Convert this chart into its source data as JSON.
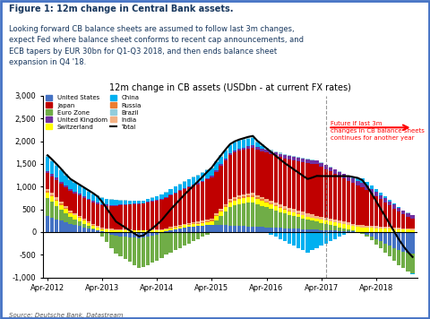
{
  "title": "12m change in CB assets (USDbn - at current FX rates)",
  "figure_title": "Figure 1: 12m change in Central Bank assets.",
  "figure_subtitle": "Looking forward CB balance sheets are assumed to follow last 3m changes,\nexpect Fed where balance sheet conforms to recent cap announcements, and\nECB tapers by EUR 30bn for Q1-Q3 2018, and then ends balance sheet\nexpansion in Q4 '18.",
  "source": "Source: Deutsche Bank, Datastream",
  "annotation_text": "Future if last 3m\nchanges in CB balance sheets\ncontinues for another year",
  "ylim": [
    -1000,
    3000
  ],
  "yticks": [
    -1000,
    -500,
    0,
    500,
    1000,
    1500,
    2000,
    2500,
    3000
  ],
  "colors": {
    "United States": "#4472C4",
    "Euro Zone": "#70AD47",
    "Switzerland": "#FFFF00",
    "Russia": "#ED7D31",
    "India": "#F4B183",
    "Japan": "#C00000",
    "United Kingdom": "#7030A0",
    "China": "#00B0F0",
    "Brazil": "#92CDDC",
    "Total": "#000000"
  },
  "legend_order": [
    "United States",
    "Japan",
    "Euro Zone",
    "United Kingdom",
    "Switzerland",
    "China",
    "Russia",
    "Brazil",
    "India",
    "Total"
  ],
  "background_color": "#FFFFFF",
  "border_color": "#4472C4",
  "header_bg": "#DAEEF3",
  "future_divider_index": 61,
  "xtick_positions": [
    0,
    12,
    24,
    36,
    48,
    60,
    72
  ],
  "xtick_labels": [
    "Apr-2012",
    "Apr-2013",
    "Apr-2014",
    "Apr-2015",
    "Apr-2016",
    "Apr-2017",
    "Apr-2018"
  ],
  "series": {
    "United States": [
      350,
      320,
      280,
      250,
      210,
      180,
      160,
      130,
      100,
      80,
      60,
      40,
      10,
      -20,
      -50,
      -80,
      -90,
      -100,
      -110,
      -120,
      -130,
      -120,
      -100,
      -80,
      -50,
      -20,
      10,
      40,
      60,
      80,
      100,
      110,
      120,
      130,
      140,
      150,
      160,
      160,
      155,
      150,
      145,
      140,
      135,
      130,
      125,
      120,
      115,
      110,
      105,
      100,
      95,
      90,
      85,
      80,
      75,
      70,
      65,
      60,
      55,
      50,
      45,
      40,
      35,
      30,
      25,
      20,
      15,
      10,
      5,
      -20,
      -60,
      -100,
      -150,
      -200,
      -250,
      -300,
      -350,
      -400,
      -430,
      -460,
      -480
    ],
    "Euro Zone": [
      400,
      350,
      300,
      250,
      200,
      150,
      120,
      100,
      80,
      50,
      20,
      -20,
      -100,
      -200,
      -300,
      -400,
      -450,
      -500,
      -550,
      -600,
      -650,
      -650,
      -620,
      -600,
      -580,
      -550,
      -500,
      -450,
      -400,
      -350,
      -300,
      -250,
      -200,
      -150,
      -100,
      -50,
      0,
      100,
      200,
      300,
      400,
      450,
      480,
      500,
      520,
      530,
      500,
      470,
      440,
      410,
      380,
      350,
      320,
      300,
      280,
      260,
      240,
      220,
      200,
      180,
      160,
      140,
      120,
      100,
      80,
      60,
      40,
      20,
      0,
      -20,
      -40,
      -80,
      -120,
      -160,
      -200,
      -240,
      -280,
      -320,
      -360,
      -400,
      -430
    ],
    "Switzerland": [
      120,
      115,
      110,
      100,
      95,
      90,
      85,
      80,
      75,
      70,
      65,
      60,
      55,
      50,
      45,
      40,
      38,
      36,
      34,
      32,
      30,
      30,
      32,
      34,
      36,
      38,
      40,
      42,
      44,
      46,
      48,
      50,
      52,
      54,
      60,
      70,
      80,
      90,
      95,
      100,
      105,
      108,
      110,
      112,
      114,
      116,
      110,
      105,
      100,
      95,
      90,
      85,
      80,
      75,
      70,
      65,
      60,
      55,
      55,
      60,
      65,
      70,
      75,
      80,
      85,
      90,
      95,
      100,
      105,
      100,
      95,
      90,
      85,
      80,
      75,
      70,
      65,
      60,
      55,
      50,
      45
    ],
    "Russia": [
      30,
      28,
      26,
      24,
      22,
      20,
      18,
      16,
      14,
      12,
      10,
      8,
      6,
      4,
      2,
      1,
      1,
      1,
      1,
      1,
      1,
      1,
      1,
      1,
      1,
      1,
      5,
      8,
      10,
      12,
      14,
      16,
      18,
      20,
      22,
      24,
      26,
      28,
      30,
      32,
      34,
      36,
      38,
      40,
      42,
      44,
      40,
      36,
      32,
      28,
      24,
      20,
      18,
      16,
      14,
      12,
      10,
      8,
      6,
      5,
      4,
      3,
      3,
      3,
      3,
      3,
      3,
      3,
      3,
      3,
      3,
      3,
      3,
      3,
      3,
      3,
      3,
      3,
      3,
      3,
      3
    ],
    "India": [
      50,
      48,
      46,
      44,
      42,
      40,
      38,
      36,
      34,
      32,
      30,
      28,
      26,
      24,
      22,
      20,
      19,
      18,
      17,
      16,
      15,
      15,
      16,
      17,
      18,
      19,
      20,
      21,
      22,
      23,
      24,
      25,
      26,
      27,
      28,
      29,
      30,
      32,
      34,
      36,
      38,
      40,
      42,
      44,
      46,
      48,
      50,
      52,
      54,
      56,
      58,
      60,
      62,
      64,
      66,
      68,
      70,
      72,
      70,
      68,
      66,
      64,
      62,
      60,
      58,
      56,
      54,
      52,
      50,
      48,
      46,
      44,
      42,
      40,
      38,
      36,
      34,
      32,
      30,
      28,
      26
    ],
    "Japan": [
      350,
      370,
      390,
      400,
      410,
      420,
      430,
      440,
      450,
      460,
      470,
      480,
      490,
      500,
      510,
      520,
      530,
      540,
      550,
      560,
      570,
      580,
      600,
      620,
      640,
      660,
      680,
      700,
      720,
      740,
      760,
      780,
      800,
      820,
      850,
      880,
      900,
      920,
      940,
      960,
      970,
      975,
      980,
      985,
      990,
      995,
      1000,
      1010,
      1020,
      1030,
      1040,
      1050,
      1060,
      1070,
      1080,
      1090,
      1100,
      1110,
      1120,
      1130,
      1100,
      1070,
      1040,
      1010,
      980,
      950,
      920,
      890,
      860,
      830,
      780,
      720,
      660,
      600,
      540,
      480,
      420,
      360,
      300,
      260,
      220
    ],
    "United Kingdom": [
      50,
      48,
      46,
      44,
      42,
      40,
      38,
      36,
      34,
      32,
      30,
      28,
      26,
      24,
      22,
      20,
      19,
      18,
      17,
      16,
      15,
      14,
      14,
      14,
      14,
      14,
      16,
      18,
      20,
      22,
      24,
      26,
      28,
      30,
      32,
      34,
      36,
      38,
      40,
      42,
      44,
      46,
      48,
      50,
      52,
      54,
      56,
      58,
      60,
      62,
      64,
      66,
      68,
      70,
      72,
      74,
      76,
      78,
      80,
      82,
      84,
      86,
      88,
      90,
      92,
      94,
      96,
      98,
      100,
      102,
      100,
      98,
      96,
      94,
      92,
      90,
      88,
      86,
      84,
      82,
      80
    ],
    "China": [
      300,
      280,
      260,
      240,
      220,
      200,
      190,
      180,
      170,
      160,
      150,
      140,
      130,
      120,
      110,
      100,
      90,
      80,
      70,
      60,
      50,
      50,
      60,
      70,
      80,
      90,
      100,
      110,
      120,
      130,
      140,
      150,
      160,
      170,
      170,
      170,
      170,
      170,
      170,
      170,
      170,
      170,
      170,
      170,
      170,
      170,
      100,
      50,
      0,
      -50,
      -100,
      -150,
      -200,
      -250,
      -300,
      -350,
      -400,
      -450,
      -400,
      -350,
      -300,
      -250,
      -200,
      -150,
      -100,
      -50,
      0,
      30,
      60,
      90,
      80,
      70,
      60,
      50,
      40,
      30,
      20,
      10,
      0,
      -10,
      -20
    ],
    "Brazil": [
      40,
      38,
      36,
      34,
      32,
      30,
      28,
      26,
      24,
      22,
      20,
      18,
      16,
      14,
      12,
      10,
      9,
      8,
      7,
      6,
      5,
      5,
      6,
      7,
      8,
      9,
      10,
      11,
      12,
      13,
      14,
      15,
      16,
      17,
      18,
      19,
      20,
      22,
      24,
      26,
      28,
      30,
      32,
      34,
      36,
      38,
      36,
      34,
      32,
      30,
      28,
      26,
      24,
      22,
      20,
      18,
      16,
      14,
      12,
      10,
      8,
      8,
      8,
      8,
      8,
      8,
      8,
      8,
      8,
      8,
      8,
      8,
      8,
      8,
      8,
      8,
      8,
      8,
      8,
      8,
      8
    ]
  }
}
